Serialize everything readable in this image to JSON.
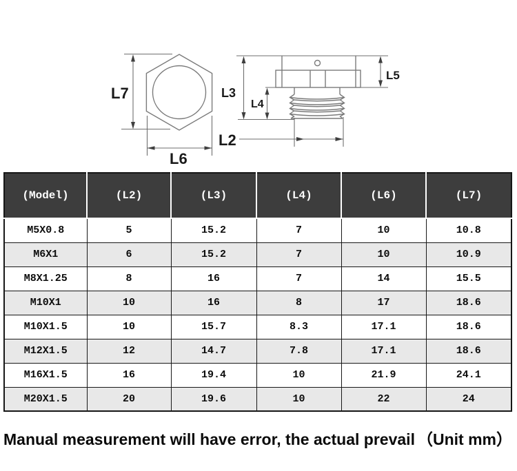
{
  "diagram": {
    "labels": {
      "l2": "L2",
      "l3": "L3",
      "l4": "L4",
      "l5": "L5",
      "l6": "L6",
      "l7": "L7"
    },
    "line_color": "#7a7a7a",
    "label_color": "#1a1a1a"
  },
  "table": {
    "header_bg": "#3d3d3d",
    "header_text_color": "#ffffff",
    "row_alt_bg": "#e8e8e8",
    "headers": [
      "(Model)",
      "(L2)",
      "(L3)",
      "(L4)",
      "(L6)",
      "(L7)"
    ],
    "rows": [
      [
        "M5X0.8",
        "5",
        "15.2",
        "7",
        "10",
        "10.8"
      ],
      [
        "M6X1",
        "6",
        "15.2",
        "7",
        "10",
        "10.9"
      ],
      [
        "M8X1.25",
        "8",
        "16",
        "7",
        "14",
        "15.5"
      ],
      [
        "M10X1",
        "10",
        "16",
        "8",
        "17",
        "18.6"
      ],
      [
        "M10X1.5",
        "10",
        "15.7",
        "8.3",
        "17.1",
        "18.6"
      ],
      [
        "M12X1.5",
        "12",
        "14.7",
        "7.8",
        "17.1",
        "18.6"
      ],
      [
        "M16X1.5",
        "16",
        "19.4",
        "10",
        "21.9",
        "24.1"
      ],
      [
        "M20X1.5",
        "20",
        "19.6",
        "10",
        "22",
        "24"
      ]
    ]
  },
  "footer": {
    "note": "Manual measurement will have error, the actual prevail",
    "unit": "（Unit mm）"
  }
}
